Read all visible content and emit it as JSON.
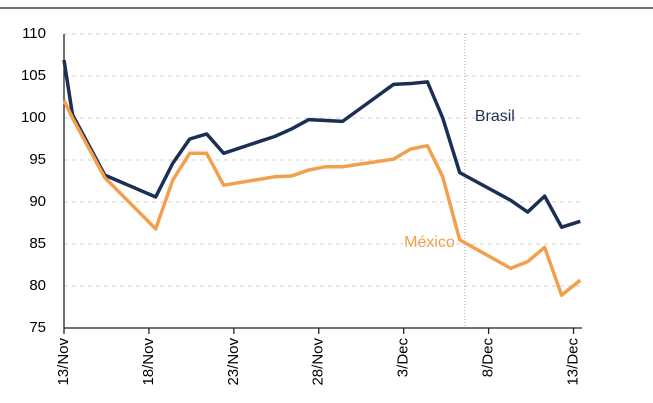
{
  "chart_data": {
    "type": "line",
    "x": [
      0,
      0.5,
      2.4,
      5.4,
      6.4,
      7.4,
      8.4,
      9.4,
      12.4,
      13.4,
      14.4,
      15.4,
      16.4,
      19.4,
      20.4,
      21.4,
      22.3,
      23.3,
      26.3,
      27.3,
      28.3,
      29.3,
      30.4
    ],
    "series": [
      {
        "name": "Brasil",
        "color": "#1b2f55",
        "values": [
          106.9,
          100.4,
          93.2,
          90.6,
          94.6,
          97.5,
          98.1,
          95.8,
          97.8,
          98.7,
          99.8,
          99.7,
          99.6,
          104.0,
          104.1,
          104.3,
          100.0,
          93.5,
          90.2,
          88.8,
          90.7,
          87.0,
          87.7
        ]
      },
      {
        "name": "México",
        "color": "#f2a04e",
        "values": [
          102.1,
          100.0,
          92.9,
          86.8,
          92.6,
          95.8,
          95.8,
          92.0,
          93.0,
          93.1,
          93.8,
          94.2,
          94.2,
          95.1,
          96.3,
          96.7,
          93.0,
          85.5,
          82.1,
          82.9,
          84.6,
          78.9,
          80.7
        ]
      }
    ],
    "xlim": [
      0,
      30.5
    ],
    "xticks": [
      {
        "value": 0,
        "label": "13/Nov"
      },
      {
        "value": 5,
        "label": "18/Nov"
      },
      {
        "value": 10,
        "label": "23/Nov"
      },
      {
        "value": 15,
        "label": "28/Nov"
      },
      {
        "value": 20,
        "label": "3/Dec"
      },
      {
        "value": 25,
        "label": "8/Dec"
      },
      {
        "value": 30,
        "label": "13/Dec"
      }
    ],
    "ylim": [
      75,
      110
    ],
    "yticks": [
      75,
      80,
      85,
      90,
      95,
      100,
      105,
      110
    ],
    "grid": true,
    "vline_x": 23.6
  }
}
